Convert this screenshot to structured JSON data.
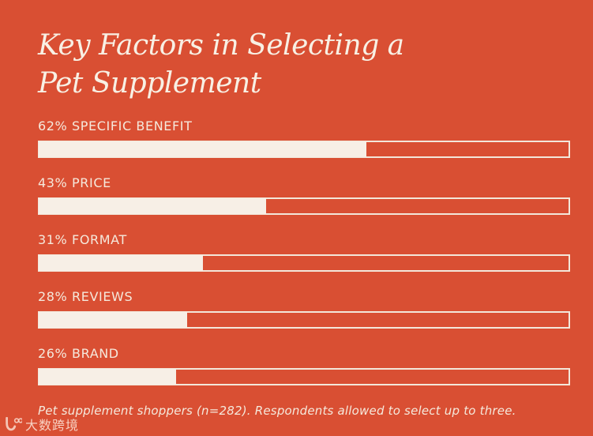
{
  "title": {
    "line1": "Key Factors in Selecting a",
    "line2": "Pet Supplement"
  },
  "bars": [
    {
      "label": "62% SPECIFIC BENEFIT",
      "value": 62
    },
    {
      "label": "43% PRICE",
      "value": 43
    },
    {
      "label": "31% FORMAT",
      "value": 31
    },
    {
      "label": "28% REVIEWS",
      "value": 28
    },
    {
      "label": "26% BRAND",
      "value": 26
    }
  ],
  "footnote": "Pet supplement shoppers (n=282). Respondents allowed to select up to three.",
  "watermark": {
    "text": "大数跨境"
  },
  "colors": {
    "background": "#D94F33",
    "bar_fill": "#F7EFE6",
    "bar_border": "#F3E7DA",
    "text_cream": "#F5E9DC"
  },
  "chart_data": {
    "type": "bar",
    "orientation": "horizontal",
    "title": "Key Factors in Selecting a Pet Supplement",
    "categories": [
      "SPECIFIC BENEFIT",
      "PRICE",
      "FORMAT",
      "REVIEWS",
      "BRAND"
    ],
    "values": [
      62,
      43,
      31,
      28,
      26
    ],
    "unit": "%",
    "xlim": [
      0,
      100
    ],
    "grid": false,
    "legend": false,
    "data_labels": [
      "62%",
      "43%",
      "31%",
      "28%",
      "26%"
    ],
    "annotation": "Pet supplement shoppers (n=282). Respondents allowed to select up to three."
  }
}
